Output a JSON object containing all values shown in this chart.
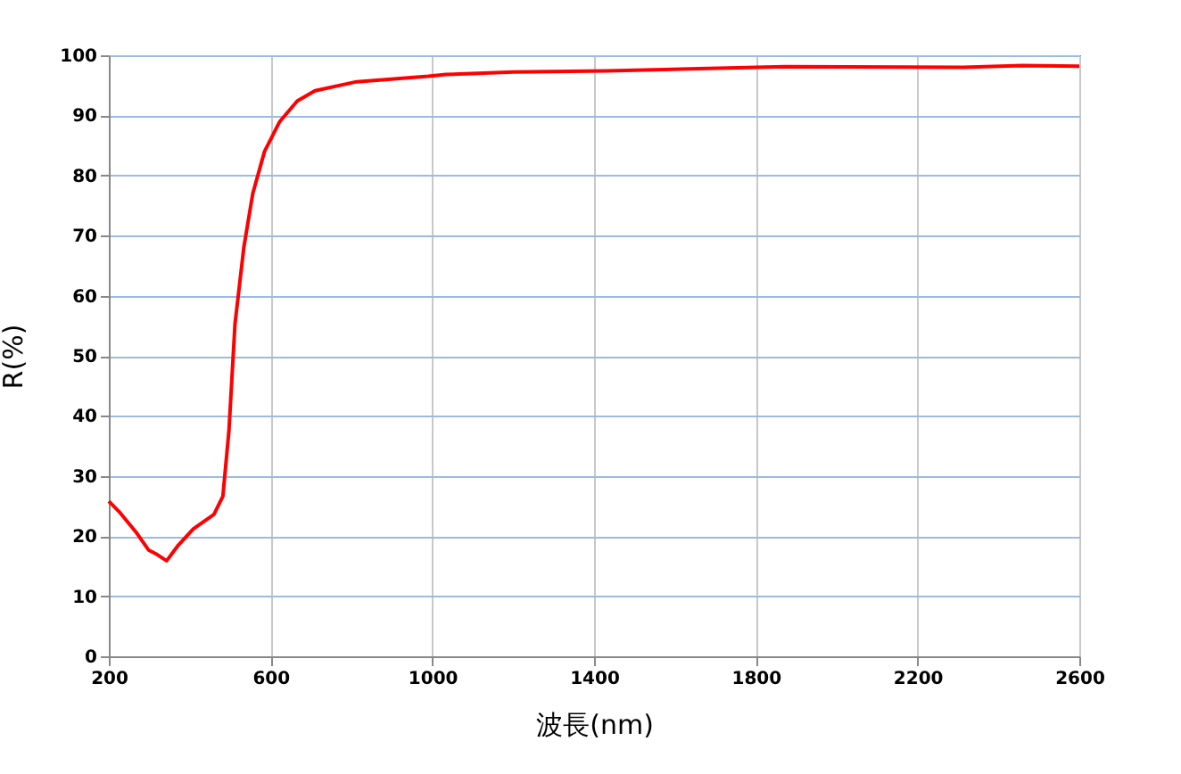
{
  "chart_data": {
    "type": "line",
    "xlabel": "波長(nm)",
    "ylabel": "R(%)",
    "x": [
      200,
      225,
      269,
      298,
      320,
      343,
      372,
      409,
      460,
      482,
      497,
      512,
      534,
      556,
      585,
      622,
      666,
      710,
      813,
      990,
      1034,
      1200,
      1431,
      1872,
      2313,
      2459,
      2600
    ],
    "series": [
      {
        "color": "#ff0000",
        "values": [
          25.8,
          24.1,
          20.5,
          17.7,
          16.9,
          15.9,
          18.5,
          21.2,
          23.6,
          26.6,
          37.5,
          55.3,
          68.1,
          77.0,
          84.0,
          88.9,
          92.4,
          94.1,
          95.6,
          96.5,
          96.8,
          97.2,
          97.4,
          98.1,
          98.0,
          98.3,
          98.2
        ]
      }
    ],
    "xlim": [
      200,
      2600
    ],
    "xticks": [
      200,
      600,
      1000,
      1400,
      1800,
      2200,
      2600
    ],
    "ylim": [
      0,
      100
    ],
    "yticks": [
      0,
      10,
      20,
      30,
      40,
      50,
      60,
      70,
      80,
      90,
      100
    ],
    "grid": true,
    "marker": "none",
    "line_style": "solid"
  }
}
